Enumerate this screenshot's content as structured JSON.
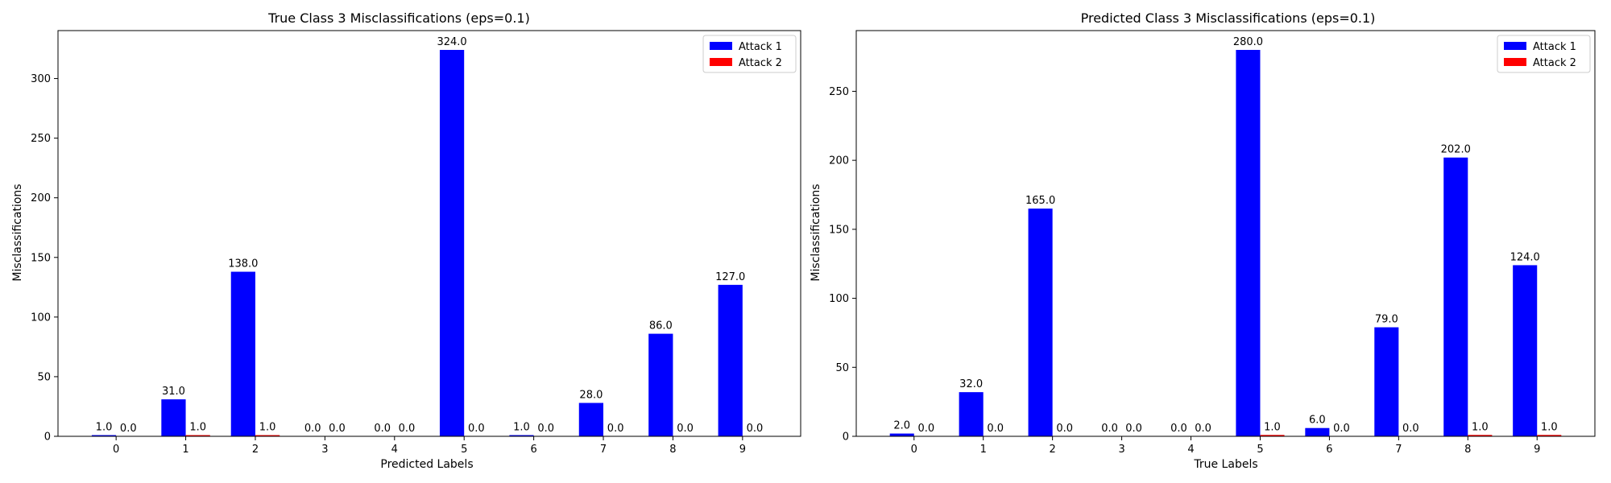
{
  "chart_data": [
    {
      "type": "bar",
      "title": "True Class 3 Misclassifications (eps=0.1)",
      "xlabel": "Predicted Labels",
      "ylabel": "Misclassifications",
      "categories": [
        "0",
        "1",
        "2",
        "3",
        "4",
        "5",
        "6",
        "7",
        "8",
        "9"
      ],
      "series": [
        {
          "name": "Attack 1",
          "color": "#0000ff",
          "values": [
            1.0,
            31.0,
            138.0,
            0.0,
            0.0,
            324.0,
            1.0,
            28.0,
            86.0,
            127.0
          ]
        },
        {
          "name": "Attack 2",
          "color": "#ff0000",
          "values": [
            0.0,
            1.0,
            1.0,
            0.0,
            0.0,
            0.0,
            0.0,
            0.0,
            0.0,
            0.0
          ]
        }
      ],
      "yticks": [
        0,
        50,
        100,
        150,
        200,
        250,
        300
      ],
      "ylim": [
        0,
        340.2
      ],
      "legend": "top-right",
      "grid": false
    },
    {
      "type": "bar",
      "title": "Predicted Class 3 Misclassifications (eps=0.1)",
      "xlabel": "True Labels",
      "ylabel": "Misclassifications",
      "categories": [
        "0",
        "1",
        "2",
        "3",
        "4",
        "5",
        "6",
        "7",
        "8",
        "9"
      ],
      "series": [
        {
          "name": "Attack 1",
          "color": "#0000ff",
          "values": [
            2.0,
            32.0,
            165.0,
            0.0,
            0.0,
            280.0,
            6.0,
            79.0,
            202.0,
            124.0
          ]
        },
        {
          "name": "Attack 2",
          "color": "#ff0000",
          "values": [
            0.0,
            0.0,
            0.0,
            0.0,
            0.0,
            1.0,
            0.0,
            0.0,
            1.0,
            1.0
          ]
        }
      ],
      "yticks": [
        0,
        50,
        100,
        150,
        200,
        250
      ],
      "ylim": [
        0,
        294.0
      ],
      "legend": "top-right",
      "grid": false
    }
  ]
}
